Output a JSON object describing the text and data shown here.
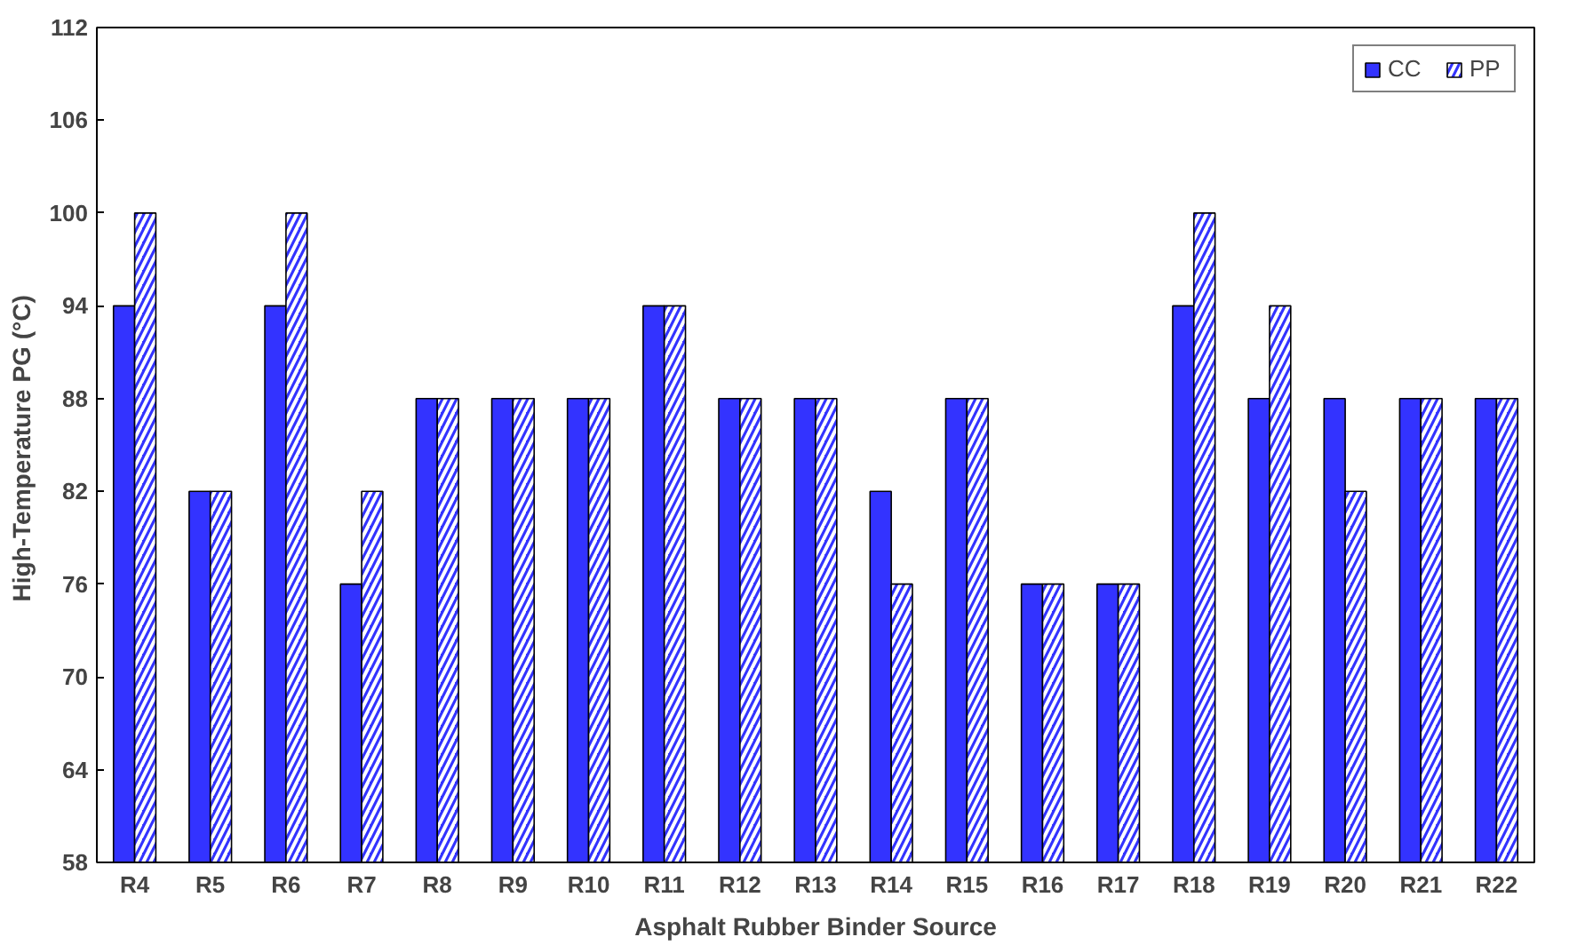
{
  "chart_data": {
    "type": "bar",
    "xlabel": "Asphalt Rubber Binder Source",
    "ylabel": "High-Temperature  PG (°C)",
    "categories": [
      "R4",
      "R5",
      "R6",
      "R7",
      "R8",
      "R9",
      "R10",
      "R11",
      "R12",
      "R13",
      "R14",
      "R15",
      "R16",
      "R17",
      "R18",
      "R19",
      "R20",
      "R21",
      "R22"
    ],
    "series": [
      {
        "name": "CC",
        "color": "#3333ff",
        "values": [
          94,
          82,
          94,
          76,
          88,
          88,
          88,
          94,
          88,
          88,
          82,
          88,
          76,
          76,
          94,
          88,
          88,
          88,
          88
        ]
      },
      {
        "name": "PP",
        "color": "#3333ff",
        "values": [
          100,
          82,
          100,
          82,
          88,
          88,
          88,
          94,
          88,
          88,
          76,
          88,
          76,
          76,
          100,
          94,
          82,
          88,
          88
        ]
      }
    ],
    "ylim": [
      58,
      112
    ],
    "yticks": [
      58,
      64,
      70,
      76,
      82,
      88,
      94,
      100,
      106,
      112
    ],
    "grid": false,
    "legend": "top right"
  }
}
